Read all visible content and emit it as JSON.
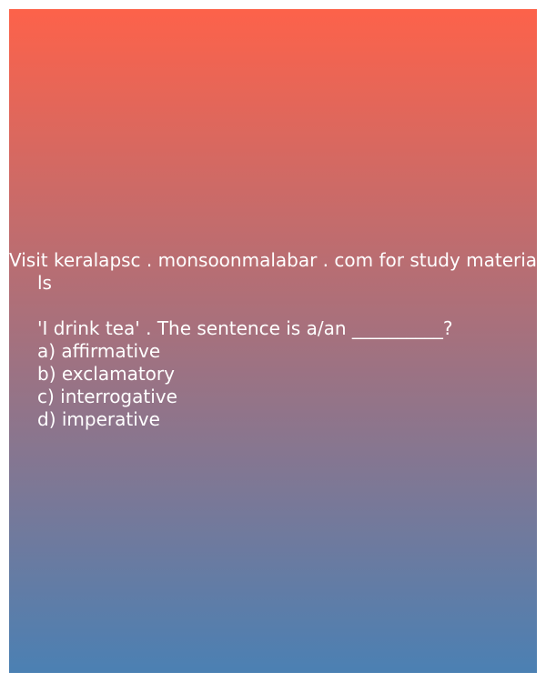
{
  "header": {
    "line1": "Visit keralapsc . monsoonmalabar . com for study materia",
    "line2": "ls"
  },
  "question": {
    "text": "'I drink tea' . The sentence is a/an __________?",
    "options": [
      "a) affirmative",
      "b) exclamatory",
      "c) interrogative",
      "d) imperative"
    ]
  },
  "colors": {
    "gradient_top": "#fd624a",
    "gradient_bottom": "#4b80b3",
    "text": "#ffffff"
  }
}
